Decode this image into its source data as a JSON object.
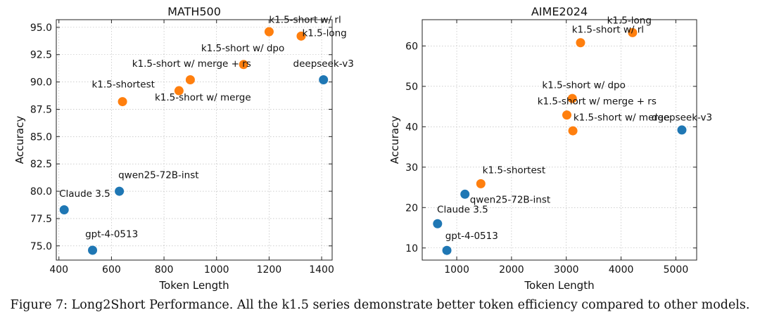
{
  "colors": {
    "k15": "#ff7f0e",
    "other": "#1f77b4"
  },
  "caption": "Figure 7: Long2Short Performance. All the k1.5 series demonstrate better token efficiency compared to other models.",
  "chart_data": [
    {
      "type": "scatter",
      "title": "MATH500",
      "xlabel": "Token Length",
      "ylabel": "Accuracy",
      "xlim": [
        390,
        1440
      ],
      "ylim": [
        73.7,
        95.7
      ],
      "xticks": [
        400,
        600,
        800,
        1000,
        1200,
        1400
      ],
      "yticks": [
        75.0,
        77.5,
        80.0,
        82.5,
        85.0,
        87.5,
        90.0,
        92.5,
        95.0
      ],
      "grid": true,
      "points": [
        {
          "label": "k1.5-short w/ rl",
          "x": 1200,
          "y": 94.6,
          "group": "k15",
          "lx": 1200,
          "ly": 95.4,
          "anchor": "start"
        },
        {
          "label": "k1.5-long",
          "x": 1322,
          "y": 94.2,
          "group": "k15",
          "lx": 1326,
          "ly": 94.2,
          "anchor": "start"
        },
        {
          "label": "k1.5-short w/ dpo",
          "x": 1103,
          "y": 91.6,
          "group": "k15",
          "lx": 1100,
          "ly": 92.8,
          "anchor": "middle"
        },
        {
          "label": "k1.5-short w/ merge + rs",
          "x": 900,
          "y": 90.2,
          "group": "k15",
          "lx": 905,
          "ly": 91.4,
          "anchor": "middle"
        },
        {
          "label": "k1.5-shortest",
          "x": 642,
          "y": 88.2,
          "group": "k15",
          "lx": 645,
          "ly": 89.5,
          "anchor": "middle"
        },
        {
          "label": "k1.5-short w/ merge",
          "x": 857,
          "y": 89.2,
          "group": "k15",
          "lx": 948,
          "ly": 88.3,
          "anchor": "middle"
        },
        {
          "label": "deepseek-v3",
          "x": 1407,
          "y": 90.2,
          "group": "other",
          "lx": 1407,
          "ly": 91.4,
          "anchor": "middle"
        },
        {
          "label": "qwen25-72B-inst",
          "x": 630,
          "y": 80.0,
          "group": "other",
          "lx": 626,
          "ly": 81.2,
          "anchor": "start"
        },
        {
          "label": "Claude 3.5",
          "x": 420,
          "y": 78.3,
          "group": "other",
          "lx": 401,
          "ly": 79.5,
          "anchor": "start"
        },
        {
          "label": "gpt-4-0513",
          "x": 528,
          "y": 74.6,
          "group": "other",
          "lx": 500,
          "ly": 75.8,
          "anchor": "start"
        }
      ]
    },
    {
      "type": "scatter",
      "title": "AIME2024",
      "xlabel": "Token Length",
      "ylabel": "Accuracy",
      "xlim": [
        370,
        5380
      ],
      "ylim": [
        7,
        66.5
      ],
      "xticks": [
        1000,
        2000,
        3000,
        4000,
        5000
      ],
      "yticks": [
        10,
        20,
        30,
        40,
        50,
        60
      ],
      "grid": true,
      "points": [
        {
          "label": "k1.5-long",
          "x": 4210,
          "y": 63.3,
          "group": "k15",
          "lx": 4150,
          "ly": 65.5,
          "anchor": "middle"
        },
        {
          "label": "k1.5-short w/ rl",
          "x": 3260,
          "y": 60.8,
          "group": "k15",
          "lx": 3760,
          "ly": 63.3,
          "anchor": "middle"
        },
        {
          "label": "k1.5-short w/ dpo",
          "x": 3110,
          "y": 47.0,
          "group": "k15",
          "lx": 3320,
          "ly": 49.5,
          "anchor": "middle"
        },
        {
          "label": "k1.5-short w/ merge + rs",
          "x": 3010,
          "y": 42.9,
          "group": "k15",
          "lx": 3560,
          "ly": 45.5,
          "anchor": "middle"
        },
        {
          "label": "k1.5-short w/ merge",
          "x": 3120,
          "y": 39.0,
          "group": "k15",
          "lx": 3130,
          "ly": 41.5,
          "anchor": "start"
        },
        {
          "label": "k1.5-shortest",
          "x": 1440,
          "y": 25.9,
          "group": "k15",
          "lx": 1470,
          "ly": 28.5,
          "anchor": "start"
        },
        {
          "label": "deepseek-v3",
          "x": 5110,
          "y": 39.2,
          "group": "other",
          "lx": 5110,
          "ly": 41.5,
          "anchor": "middle"
        },
        {
          "label": "qwen25-72B-inst",
          "x": 1150,
          "y": 23.3,
          "group": "other",
          "lx": 1240,
          "ly": 21.2,
          "anchor": "start"
        },
        {
          "label": "Claude 3.5",
          "x": 650,
          "y": 16.0,
          "group": "other",
          "lx": 640,
          "ly": 18.7,
          "anchor": "start"
        },
        {
          "label": "gpt-4-0513",
          "x": 820,
          "y": 9.4,
          "group": "other",
          "lx": 790,
          "ly": 12.2,
          "anchor": "start"
        }
      ]
    }
  ]
}
